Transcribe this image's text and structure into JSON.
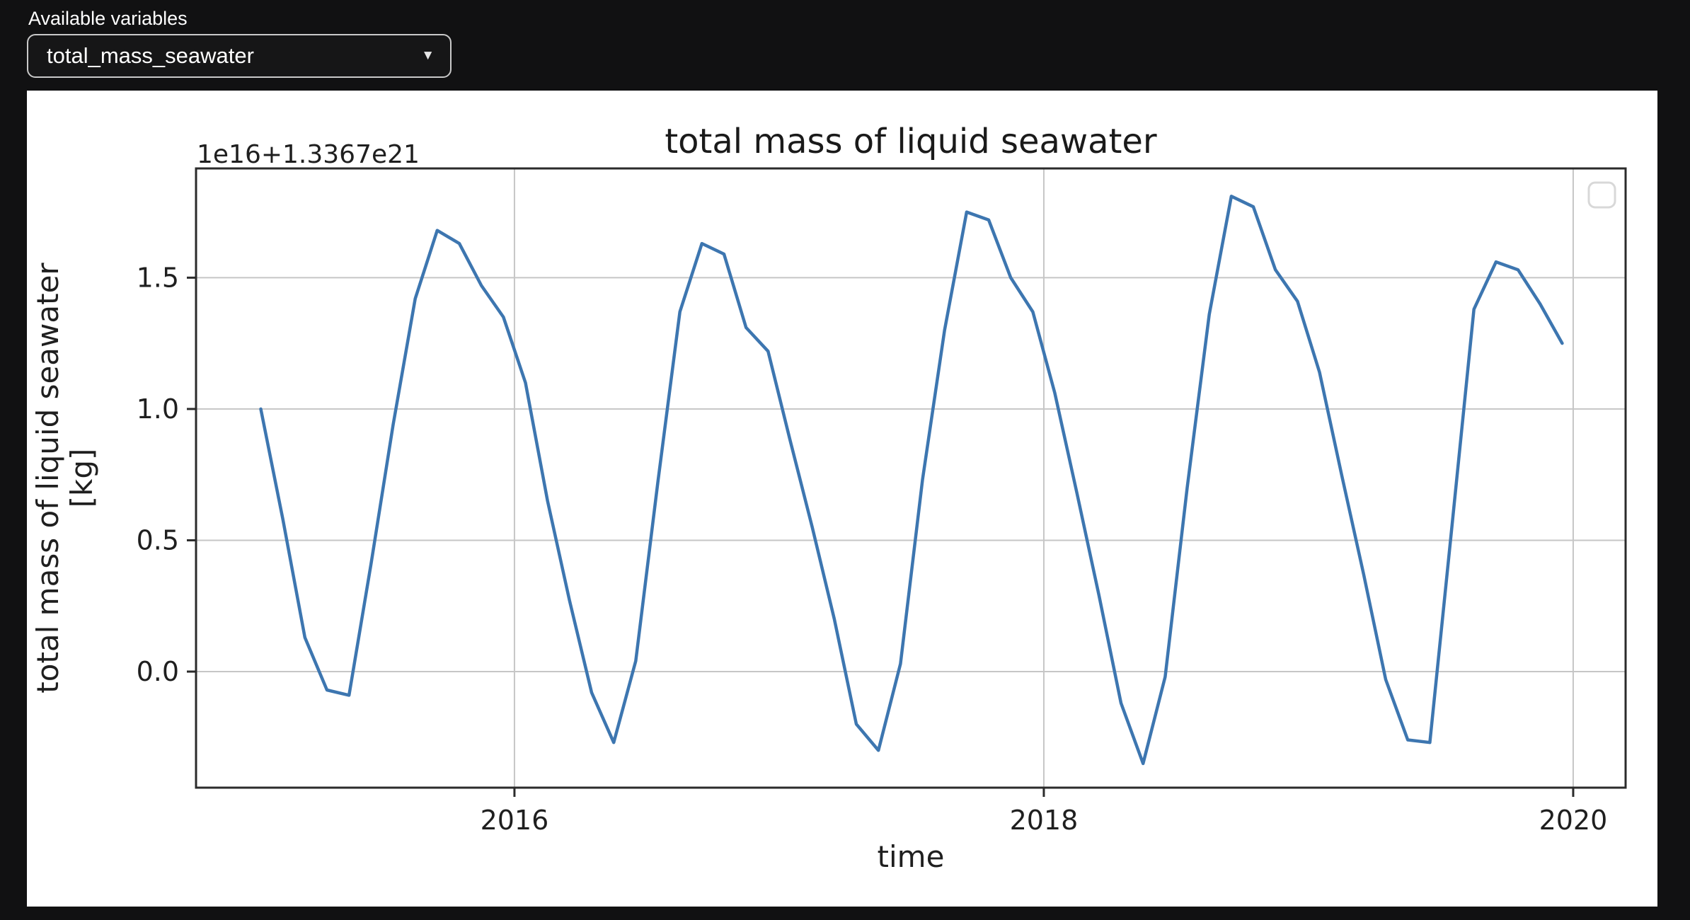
{
  "controls": {
    "label": "Available variables",
    "dropdown": {
      "value": "total_mass_seawater",
      "arrow_icon": "▼"
    }
  },
  "chart_data": {
    "type": "line",
    "title": "total mass of liquid seawater",
    "xlabel": "time",
    "ylabel_lines": [
      "total mass of liquid seawater",
      "[kg]"
    ],
    "offset_text": "1e16+1.3367e21",
    "series_name": "total_mass_seawater",
    "x_start": {
      "year": 2015,
      "month": 1
    },
    "x_monthly_step": true,
    "values": [
      1.0,
      0.58,
      0.13,
      -0.07,
      -0.09,
      0.41,
      0.94,
      1.42,
      1.68,
      1.63,
      1.47,
      1.35,
      1.1,
      0.65,
      0.27,
      -0.08,
      -0.27,
      0.04,
      0.72,
      1.37,
      1.63,
      1.59,
      1.31,
      1.22,
      0.88,
      0.55,
      0.2,
      -0.2,
      -0.3,
      0.03,
      0.73,
      1.3,
      1.75,
      1.72,
      1.5,
      1.37,
      1.06,
      0.68,
      0.29,
      -0.12,
      -0.35,
      -0.02,
      0.7,
      1.36,
      1.81,
      1.77,
      1.53,
      1.41,
      1.14,
      0.75,
      0.37,
      -0.03,
      -0.26,
      -0.27,
      0.55,
      1.38,
      1.56,
      1.53,
      1.4,
      1.25
    ],
    "xticks": [
      {
        "value": 2016,
        "label": "2016"
      },
      {
        "value": 2018,
        "label": "2018"
      },
      {
        "value": 2020,
        "label": "2020"
      }
    ],
    "yticks": [
      {
        "value": 0.0,
        "label": "0.0"
      },
      {
        "value": 0.5,
        "label": "0.5"
      },
      {
        "value": 1.0,
        "label": "1.0"
      },
      {
        "value": 1.5,
        "label": "1.5"
      }
    ],
    "xlim": [
      2014.797,
      2020.198
    ],
    "ylim": [
      -0.442,
      1.916
    ],
    "grid": true,
    "legend": {
      "visible": true,
      "entries": [],
      "position": "upper right"
    },
    "colors": {
      "line": "#3d76b0",
      "grid": "#c6c6c6",
      "spine": "#2b2b2b",
      "text": "#1f1f1f",
      "figure_bg": "#ffffff",
      "legend_border": "#d8d8d8"
    }
  }
}
